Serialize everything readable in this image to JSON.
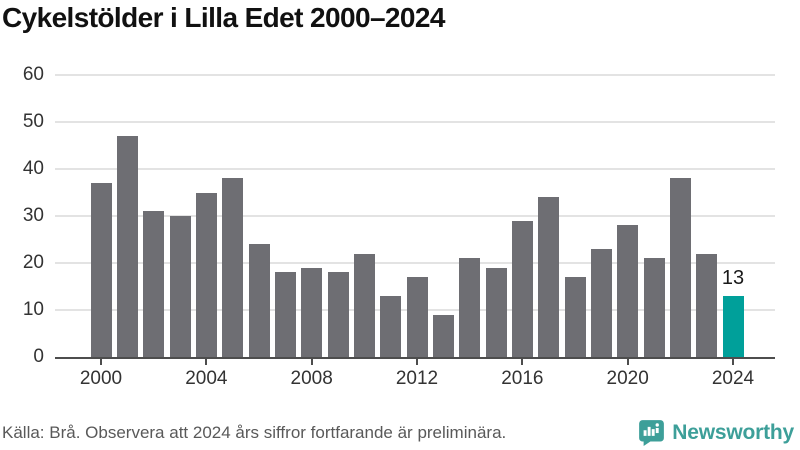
{
  "page": {
    "title": "Cykelstölder i Lilla Edet 2000–2024"
  },
  "chart_data": {
    "type": "bar",
    "title": "Cykelstölder i Lilla Edet 2000–2024",
    "categories": [
      2000,
      2001,
      2002,
      2003,
      2004,
      2005,
      2006,
      2007,
      2008,
      2009,
      2010,
      2011,
      2012,
      2013,
      2014,
      2015,
      2016,
      2017,
      2018,
      2019,
      2020,
      2021,
      2022,
      2023,
      2024
    ],
    "values": [
      37,
      47,
      31,
      30,
      35,
      38,
      24,
      18,
      19,
      18,
      22,
      13,
      17,
      9,
      21,
      19,
      29,
      34,
      17,
      23,
      28,
      21,
      38,
      22,
      13
    ],
    "highlight_index": 24,
    "highlight_value_label": "13",
    "xlabel": "",
    "ylabel": "",
    "ylim": [
      0,
      60
    ],
    "yticks": [
      0,
      10,
      20,
      30,
      40,
      50,
      60
    ],
    "xtick_years": [
      2000,
      2004,
      2008,
      2012,
      2016,
      2020,
      2024
    ],
    "grid": true,
    "legend_position": "none",
    "colors": {
      "bar": "#6e6e73",
      "highlight": "#00a09a",
      "grid": "#e3e3e3",
      "axis": "#4d4d4d",
      "tick_label": "#333333"
    }
  },
  "footer": {
    "source_text": "Källa: Brå. Observera att 2024 års siffror fortfarande är preliminära.",
    "brand_name": "Newsworthy",
    "brand_color": "#3d9f99",
    "icon": "newsworthy-bar-chart-bubble-icon"
  }
}
